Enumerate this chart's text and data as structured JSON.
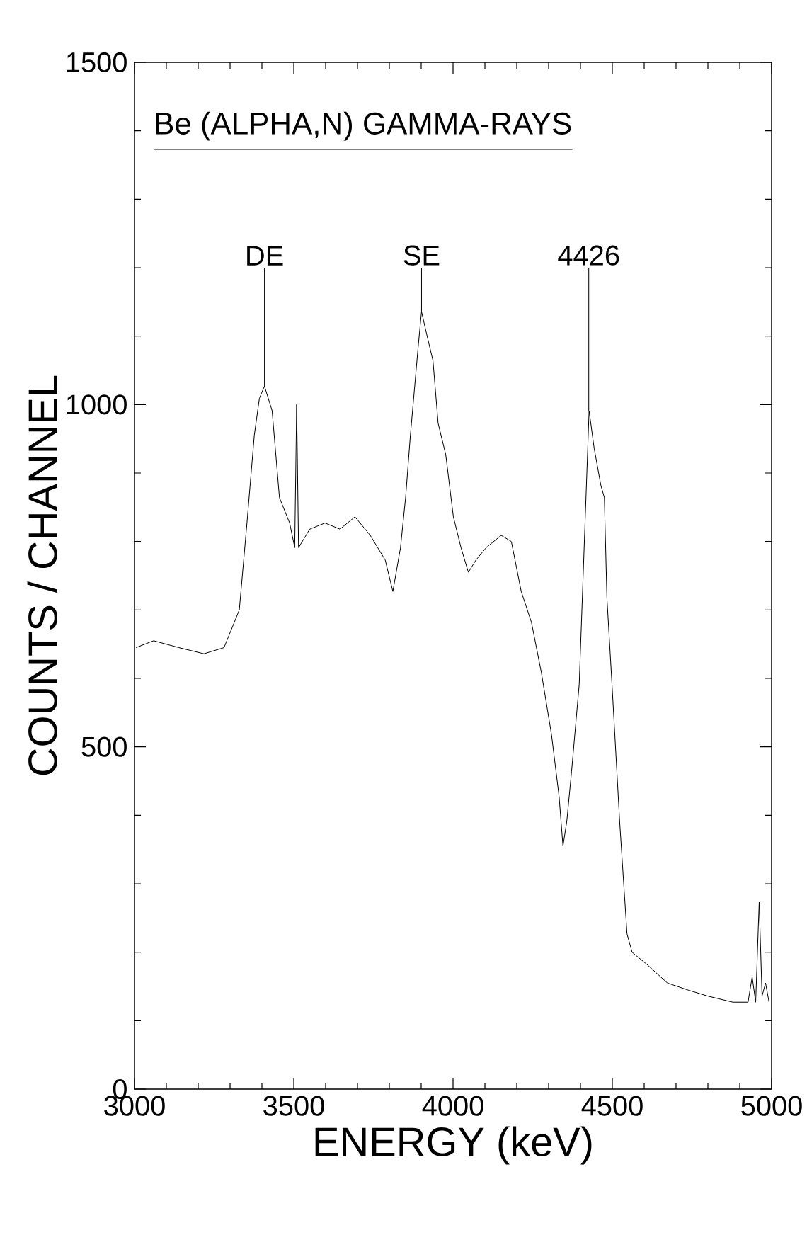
{
  "chart_data": {
    "type": "line",
    "title": "Be (ALPHA,N) GAMMA-RAYS",
    "xlabel": "ENERGY (keV)",
    "ylabel": "COUNTS / CHANNEL",
    "x": [
      3005,
      3060,
      3139,
      3218,
      3281,
      3329,
      3353,
      3376,
      3392,
      3408,
      3432,
      3455,
      3487,
      3503,
      3509,
      3515,
      3550,
      3598,
      3645,
      3692,
      3740,
      3787,
      3811,
      3835,
      3851,
      3866,
      3890,
      3901,
      3914,
      3937,
      3953,
      3977,
      4001,
      4025,
      4048,
      4072,
      4104,
      4151,
      4183,
      4214,
      4246,
      4277,
      4309,
      4333,
      4345,
      4357,
      4372,
      4396,
      4420,
      4427,
      4443,
      4464,
      4475,
      4483,
      4499,
      4523,
      4546,
      4562,
      4609,
      4673,
      4736,
      4799,
      4878,
      4926,
      4939,
      4950,
      4961,
      4970,
      4981,
      4992
    ],
    "values": [
      645,
      655,
      645,
      636,
      645,
      700,
      827,
      955,
      1009,
      1027,
      991,
      864,
      827,
      791,
      1000,
      791,
      818,
      827,
      818,
      836,
      809,
      773,
      727,
      791,
      864,
      955,
      1082,
      1136,
      1109,
      1064,
      973,
      927,
      836,
      791,
      755,
      773,
      791,
      809,
      800,
      727,
      682,
      609,
      518,
      427,
      355,
      391,
      464,
      591,
      900,
      991,
      936,
      882,
      864,
      718,
      591,
      391,
      227,
      200,
      182,
      155,
      145,
      136,
      127,
      127,
      164,
      127,
      273,
      136,
      155,
      127
    ],
    "color": "#000000",
    "xlim": [
      3000,
      5000
    ],
    "ylim": [
      0,
      1500
    ],
    "xticks": [
      3000,
      {
        "value": 3100,
        "label": null
      },
      {
        "value": 3200,
        "label": null
      },
      {
        "value": 3300,
        "label": null
      },
      {
        "value": 3400,
        "label": null
      },
      3500,
      {
        "value": 3600,
        "label": null
      },
      {
        "value": 3700,
        "label": null
      },
      {
        "value": 3800,
        "label": null
      },
      {
        "value": 3900,
        "label": null
      },
      4000,
      {
        "value": 4100,
        "label": null
      },
      {
        "value": 4200,
        "label": null
      },
      {
        "value": 4300,
        "label": null
      },
      {
        "value": 4400,
        "label": null
      },
      4500,
      {
        "value": 4600,
        "label": null
      },
      {
        "value": 4700,
        "label": null
      },
      {
        "value": 4800,
        "label": null
      },
      {
        "value": 4900,
        "label": null
      },
      5000
    ],
    "yticks": [
      0,
      {
        "value": 100,
        "label": null
      },
      {
        "value": 200,
        "label": null
      },
      {
        "value": 300,
        "label": null
      },
      {
        "value": 400,
        "label": null
      },
      500,
      {
        "value": 600,
        "label": null
      },
      {
        "value": 700,
        "label": null
      },
      {
        "value": 800,
        "label": null
      },
      {
        "value": 900,
        "label": null
      },
      1000,
      {
        "value": 1100,
        "label": null
      },
      {
        "value": 1200,
        "label": null
      },
      {
        "value": 1300,
        "label": null
      },
      {
        "value": 1400,
        "label": null
      },
      1500
    ],
    "annotations": [
      {
        "text": "DE",
        "x": 3408,
        "y": 1027
      },
      {
        "text": "SE",
        "x": 3901,
        "y": 1136
      },
      {
        "text": "4426",
        "x": 4426,
        "y": 991
      }
    ]
  }
}
